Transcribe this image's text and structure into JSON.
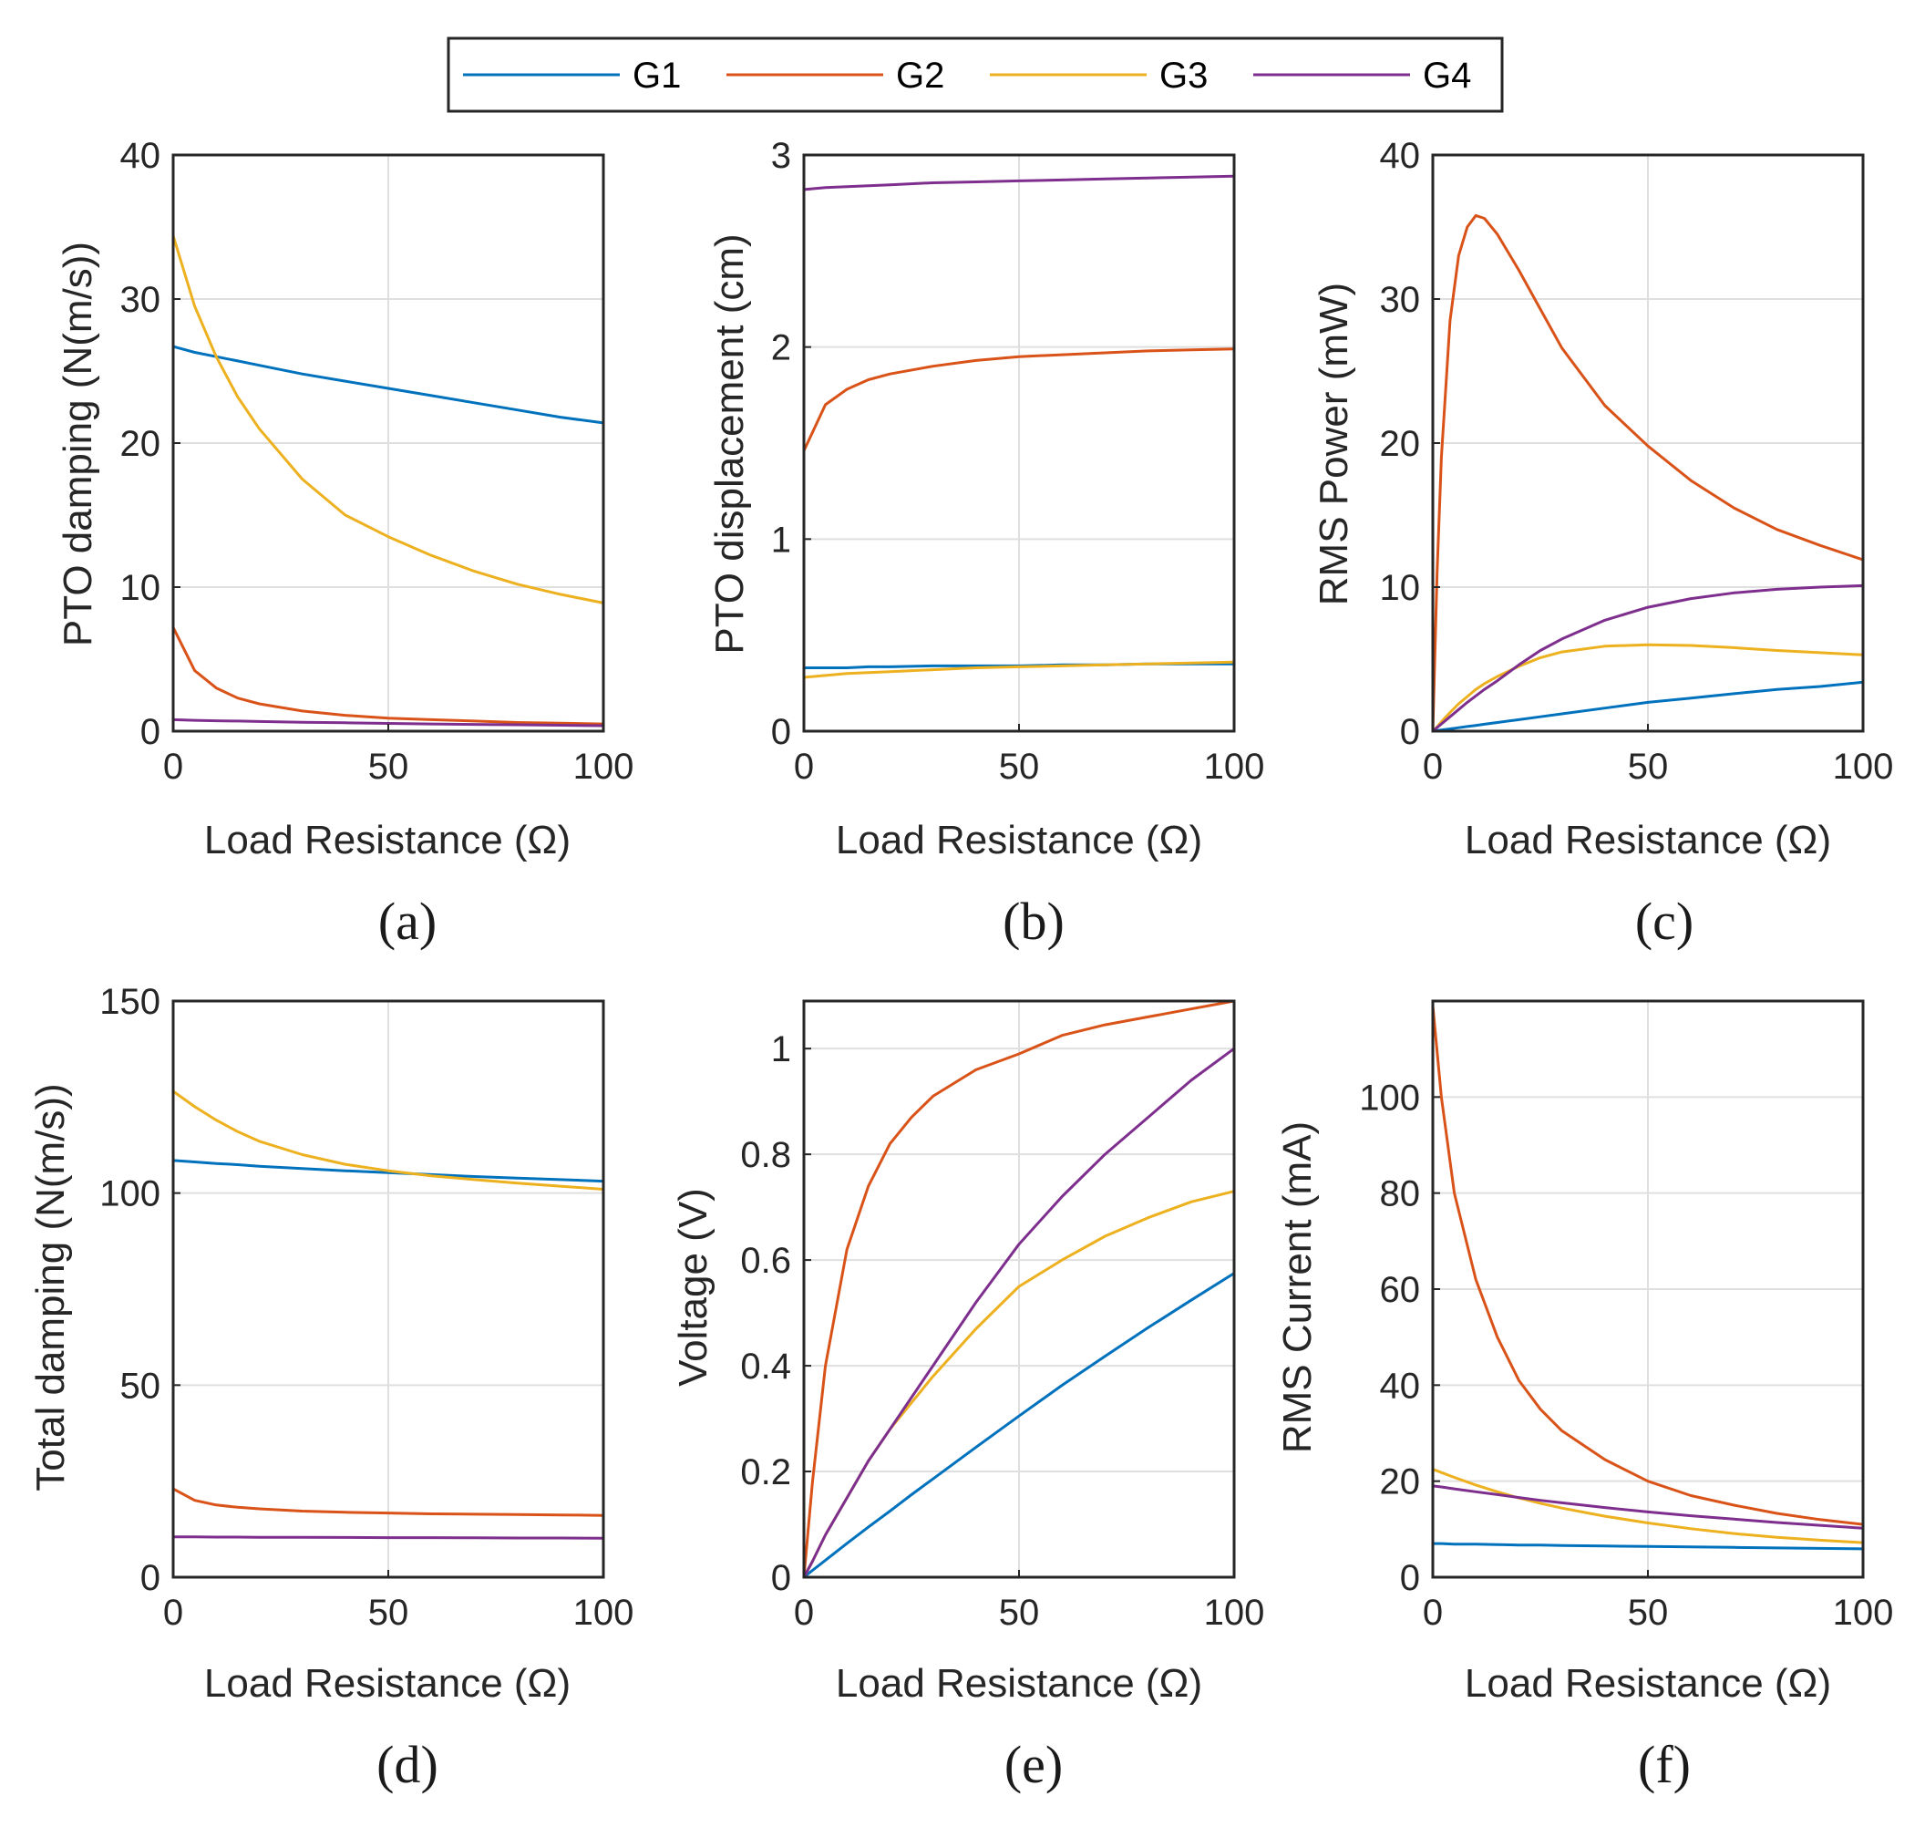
{
  "legend": {
    "entries": [
      {
        "name": "G1",
        "color": "#0072BD"
      },
      {
        "name": "G2",
        "color": "#D95319"
      },
      {
        "name": "G3",
        "color": "#EDB120"
      },
      {
        "name": "G4",
        "color": "#7E2F8E"
      }
    ]
  },
  "chart_data": [
    {
      "type": "line",
      "panel_label": "(a)",
      "title": "",
      "xlabel": "Load Resistance (Ω)",
      "ylabel": "PTO damping (N(m/s))",
      "xlim": [
        0,
        100
      ],
      "ylim": [
        0,
        40
      ],
      "xticks": [
        0,
        50,
        100
      ],
      "yticks": [
        0,
        10,
        20,
        30,
        40
      ],
      "grid": true,
      "x": [
        0,
        5,
        10,
        15,
        20,
        30,
        40,
        50,
        60,
        70,
        80,
        90,
        100
      ],
      "series": [
        {
          "name": "G1",
          "values": [
            26.7,
            26.3,
            26.0,
            25.7,
            25.4,
            24.8,
            24.3,
            23.8,
            23.3,
            22.8,
            22.3,
            21.8,
            21.4
          ]
        },
        {
          "name": "G2",
          "values": [
            7.2,
            4.2,
            3.0,
            2.3,
            1.9,
            1.4,
            1.1,
            0.9,
            0.8,
            0.7,
            0.6,
            0.55,
            0.5
          ]
        },
        {
          "name": "G3",
          "values": [
            34.4,
            29.5,
            26.0,
            23.2,
            21.0,
            17.5,
            15.0,
            13.5,
            12.2,
            11.1,
            10.2,
            9.5,
            8.9
          ]
        },
        {
          "name": "G4",
          "values": [
            0.8,
            0.75,
            0.72,
            0.7,
            0.67,
            0.62,
            0.58,
            0.54,
            0.5,
            0.47,
            0.44,
            0.41,
            0.38
          ]
        }
      ]
    },
    {
      "type": "line",
      "panel_label": "(b)",
      "title": "",
      "xlabel": "Load Resistance (Ω)",
      "ylabel": "PTO displacement (cm)",
      "xlim": [
        0,
        100
      ],
      "ylim": [
        0,
        3
      ],
      "xticks": [
        0,
        50,
        100
      ],
      "yticks": [
        0,
        1,
        2,
        3
      ],
      "grid": true,
      "x": [
        0,
        5,
        10,
        15,
        20,
        30,
        40,
        50,
        60,
        70,
        80,
        90,
        100
      ],
      "series": [
        {
          "name": "G1",
          "values": [
            0.33,
            0.33,
            0.33,
            0.335,
            0.335,
            0.34,
            0.34,
            0.34,
            0.345,
            0.345,
            0.35,
            0.35,
            0.35
          ]
        },
        {
          "name": "G2",
          "values": [
            1.46,
            1.7,
            1.78,
            1.83,
            1.86,
            1.9,
            1.93,
            1.95,
            1.96,
            1.97,
            1.98,
            1.985,
            1.99
          ]
        },
        {
          "name": "G3",
          "values": [
            0.28,
            0.29,
            0.3,
            0.305,
            0.31,
            0.32,
            0.33,
            0.335,
            0.34,
            0.345,
            0.35,
            0.355,
            0.36
          ]
        },
        {
          "name": "G4",
          "values": [
            2.82,
            2.83,
            2.835,
            2.84,
            2.845,
            2.855,
            2.86,
            2.865,
            2.87,
            2.875,
            2.88,
            2.885,
            2.89
          ]
        }
      ]
    },
    {
      "type": "line",
      "panel_label": "(c)",
      "title": "",
      "xlabel": "Load Resistance (Ω)",
      "ylabel": "RMS Power (mW)",
      "xlim": [
        0,
        100
      ],
      "ylim": [
        0,
        40
      ],
      "xticks": [
        0,
        50,
        100
      ],
      "yticks": [
        0,
        10,
        20,
        30,
        40
      ],
      "grid": true,
      "x": [
        0,
        1,
        2,
        4,
        6,
        8,
        10,
        12,
        15,
        20,
        25,
        30,
        40,
        50,
        60,
        70,
        80,
        90,
        100
      ],
      "series": [
        {
          "name": "G1",
          "values": [
            0,
            0.04,
            0.08,
            0.16,
            0.24,
            0.32,
            0.4,
            0.48,
            0.6,
            0.8,
            1.0,
            1.2,
            1.6,
            2.0,
            2.3,
            2.6,
            2.9,
            3.1,
            3.4
          ]
        },
        {
          "name": "G2",
          "values": [
            0,
            11.0,
            19.0,
            28.5,
            33.0,
            35.0,
            35.8,
            35.6,
            34.5,
            32.0,
            29.3,
            26.6,
            22.6,
            19.8,
            17.4,
            15.5,
            14.0,
            12.9,
            11.9
          ]
        },
        {
          "name": "G3",
          "values": [
            0,
            0.3,
            0.65,
            1.3,
            1.9,
            2.4,
            2.9,
            3.3,
            3.8,
            4.5,
            5.1,
            5.5,
            5.9,
            6.0,
            5.95,
            5.8,
            5.6,
            5.45,
            5.3
          ]
        },
        {
          "name": "G4",
          "values": [
            0,
            0.25,
            0.5,
            1.0,
            1.5,
            2.0,
            2.45,
            2.9,
            3.5,
            4.6,
            5.6,
            6.4,
            7.7,
            8.6,
            9.2,
            9.6,
            9.85,
            10.0,
            10.1
          ]
        }
      ]
    },
    {
      "type": "line",
      "panel_label": "(d)",
      "title": "",
      "xlabel": "Load Resistance (Ω)",
      "ylabel": "Total damping (N(m/s))",
      "xlim": [
        0,
        100
      ],
      "ylim": [
        0,
        150
      ],
      "xticks": [
        0,
        50,
        100
      ],
      "yticks": [
        0,
        50,
        100,
        150
      ],
      "grid": true,
      "x": [
        0,
        5,
        10,
        15,
        20,
        30,
        40,
        50,
        60,
        70,
        80,
        90,
        100
      ],
      "series": [
        {
          "name": "G1",
          "values": [
            108.5,
            108.1,
            107.7,
            107.4,
            107.0,
            106.4,
            105.8,
            105.3,
            104.8,
            104.3,
            103.9,
            103.5,
            103.1
          ]
        },
        {
          "name": "G2",
          "values": [
            23.0,
            20.0,
            18.8,
            18.2,
            17.8,
            17.2,
            16.9,
            16.7,
            16.5,
            16.4,
            16.3,
            16.2,
            16.1
          ]
        },
        {
          "name": "G3",
          "values": [
            126.5,
            122.5,
            119.0,
            116.0,
            113.5,
            110.0,
            107.5,
            105.8,
            104.5,
            103.5,
            102.6,
            101.8,
            101.0
          ]
        },
        {
          "name": "G4",
          "values": [
            10.5,
            10.5,
            10.45,
            10.45,
            10.4,
            10.4,
            10.35,
            10.3,
            10.3,
            10.25,
            10.2,
            10.2,
            10.15
          ]
        }
      ]
    },
    {
      "type": "line",
      "panel_label": "(e)",
      "title": "",
      "xlabel": "Load Resistance (Ω)",
      "ylabel": "Voltage (V)",
      "xlim": [
        0,
        100
      ],
      "ylim": [
        0,
        1.09
      ],
      "xticks": [
        0,
        50,
        100
      ],
      "yticks": [
        0,
        0.2,
        0.4,
        0.6,
        0.8,
        1
      ],
      "ytick_labels": [
        "0",
        "0.2",
        "0.4",
        "0.6",
        "0.8",
        "1"
      ],
      "grid": true,
      "x": [
        0,
        2,
        5,
        10,
        15,
        20,
        25,
        30,
        40,
        50,
        60,
        70,
        80,
        90,
        100
      ],
      "series": [
        {
          "name": "G1",
          "values": [
            0,
            0.013,
            0.032,
            0.064,
            0.095,
            0.125,
            0.156,
            0.186,
            0.246,
            0.305,
            0.363,
            0.418,
            0.472,
            0.524,
            0.575
          ]
        },
        {
          "name": "G2",
          "values": [
            0,
            0.18,
            0.4,
            0.62,
            0.74,
            0.82,
            0.87,
            0.91,
            0.96,
            0.99,
            1.025,
            1.045,
            1.06,
            1.075,
            1.09
          ]
        },
        {
          "name": "G3",
          "values": [
            0,
            0.03,
            0.08,
            0.15,
            0.22,
            0.28,
            0.33,
            0.38,
            0.47,
            0.55,
            0.6,
            0.645,
            0.68,
            0.71,
            0.73
          ]
        },
        {
          "name": "G4",
          "values": [
            0,
            0.03,
            0.08,
            0.15,
            0.22,
            0.28,
            0.34,
            0.4,
            0.52,
            0.63,
            0.72,
            0.8,
            0.87,
            0.94,
            1.0
          ]
        }
      ]
    },
    {
      "type": "line",
      "panel_label": "(f)",
      "title": "",
      "xlabel": "Load Resistance (Ω)",
      "ylabel": "RMS Current (mA)",
      "xlim": [
        0,
        100
      ],
      "ylim": [
        0,
        120
      ],
      "xticks": [
        0,
        50,
        100
      ],
      "yticks": [
        0,
        20,
        40,
        60,
        80,
        100
      ],
      "grid": true,
      "x": [
        0,
        2,
        5,
        10,
        15,
        20,
        25,
        30,
        40,
        50,
        60,
        70,
        80,
        90,
        100
      ],
      "series": [
        {
          "name": "G1",
          "values": [
            7.0,
            7.0,
            6.9,
            6.9,
            6.8,
            6.7,
            6.7,
            6.6,
            6.5,
            6.4,
            6.3,
            6.2,
            6.1,
            6.0,
            5.9
          ]
        },
        {
          "name": "G2",
          "values": [
            119.0,
            100.0,
            80.0,
            62.0,
            50.0,
            41.0,
            35.0,
            30.5,
            24.5,
            20.0,
            17.0,
            15.0,
            13.3,
            12.0,
            11.0
          ]
        },
        {
          "name": "G3",
          "values": [
            22.5,
            21.8,
            20.8,
            19.2,
            17.8,
            16.5,
            15.4,
            14.4,
            12.7,
            11.3,
            10.1,
            9.1,
            8.3,
            7.7,
            7.2
          ]
        },
        {
          "name": "G4",
          "values": [
            19.0,
            18.8,
            18.4,
            17.8,
            17.2,
            16.6,
            16.0,
            15.5,
            14.5,
            13.6,
            12.8,
            12.1,
            11.4,
            10.8,
            10.2
          ]
        }
      ]
    }
  ]
}
